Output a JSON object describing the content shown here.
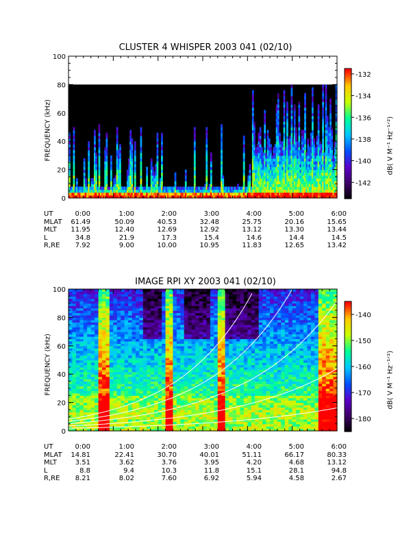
{
  "panels": [
    {
      "title": "CLUSTER 4 WHISPER 2003 041 (02/10)",
      "ylabel": "FREQUENCY (kHz)",
      "cblabel": "dB( V M⁻¹ Hz⁻¹ᐟ²)",
      "ymax_data": 80,
      "colorbar_ticks": [
        "-132",
        "-134",
        "-136",
        "-138",
        "-140",
        "-142"
      ],
      "ephemeris": {
        "UT": [
          "0:00",
          "1:00",
          "2:00",
          "3:00",
          "4:00",
          "5:00",
          "6:00"
        ],
        "MLAT": [
          "61.49",
          "50.09",
          "40.53",
          "32.48",
          "25.75",
          "20.16",
          "15.65"
        ],
        "MLT": [
          "11.95",
          "12.40",
          "12.69",
          "12.92",
          "13.12",
          "13.30",
          "13.44"
        ],
        "L": [
          "34.8",
          "21.9",
          "17.3",
          "15.4",
          "14.6",
          "14.4",
          "14.5"
        ],
        "R,RE": [
          "7.92",
          "9.00",
          "10.00",
          "10.95",
          "11.83",
          "12.65",
          "13.42"
        ]
      }
    },
    {
      "title": "IMAGE RPI XY 2003 041 (02/10)",
      "ylabel": "FREQUENCY (kHz)",
      "cblabel": "dB( V M⁻¹ Hz⁻¹ᐟ²)",
      "ymax_data": 100,
      "colorbar_ticks": [
        "-140",
        "-150",
        "-160",
        "-170",
        "-180"
      ],
      "ephemeris": {
        "UT": [
          "0:00",
          "1:00",
          "2:00",
          "3:00",
          "4:00",
          "5:00",
          "6:00"
        ],
        "MLAT": [
          "14.81",
          "22.41",
          "30.70",
          "40.01",
          "51.11",
          "66.17",
          "80.33"
        ],
        "MLT": [
          "3.51",
          "3.62",
          "3.76",
          "3.95",
          "4.20",
          "4.68",
          "13.12"
        ],
        "L": [
          "8.8",
          "9.4",
          "10.3",
          "11.8",
          "15.1",
          "28.1",
          "94.8"
        ],
        "R,RE": [
          "8.21",
          "8.02",
          "7.60",
          "6.92",
          "5.94",
          "4.58",
          "2.67"
        ]
      }
    }
  ],
  "ephem_labels": [
    "UT",
    "MLAT",
    "MLT",
    "L",
    "R,RE"
  ],
  "chart_data": [
    {
      "type": "heatmap",
      "title": "CLUSTER 4 WHISPER 2003 041 (02/10)",
      "xlabel": "",
      "ylabel": "FREQUENCY (kHz)",
      "x_tick_labels": [
        "0:00",
        "1:00",
        "2:00",
        "3:00",
        "4:00",
        "5:00",
        "6:00"
      ],
      "xlim_hours": [
        0,
        6
      ],
      "ylim": [
        0,
        100
      ],
      "y_ticks": [
        0,
        20,
        40,
        60,
        80,
        100
      ],
      "colorbar_range_db": [
        -143.5,
        -131.5
      ],
      "colorbar_ticks": [
        -132,
        -134,
        -136,
        -138,
        -140,
        -142
      ],
      "colormap": [
        "#000000",
        "#3c0064",
        "#5a00c8",
        "#0050ff",
        "#00c8ff",
        "#00ff96",
        "#c8ff00",
        "#ffc800",
        "#ff0000"
      ]
    },
    {
      "type": "heatmap",
      "title": "IMAGE RPI XY 2003 041 (02/10)",
      "xlabel": "",
      "ylabel": "FREQUENCY (kHz)",
      "x_tick_labels": [
        "0:00",
        "1:00",
        "2:00",
        "3:00",
        "4:00",
        "5:00",
        "6:00"
      ],
      "xlim_hours": [
        0,
        6
      ],
      "ylim": [
        0,
        100
      ],
      "y_ticks": [
        0,
        20,
        40,
        60,
        80,
        100
      ],
      "colorbar_range_db": [
        -185,
        -135
      ],
      "colorbar_ticks": [
        -140,
        -150,
        -160,
        -170,
        -180
      ],
      "colormap": [
        "#000000",
        "#3c0064",
        "#5a00c8",
        "#0050ff",
        "#00c8ff",
        "#00ff96",
        "#c8ff00",
        "#ffc800",
        "#ff0000"
      ]
    }
  ]
}
